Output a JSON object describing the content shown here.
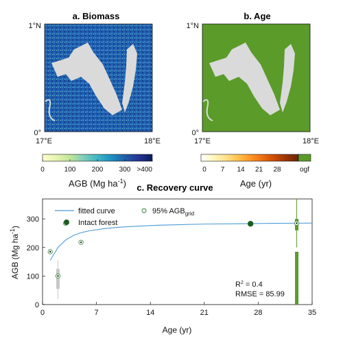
{
  "panels": {
    "a": {
      "title": "a. Biomass",
      "lat_label": "1°N",
      "lat0_label": "0°",
      "lon_left": "17°E",
      "lon_right": "18°E"
    },
    "b": {
      "title": "b. Age",
      "lat_label": "1°N",
      "lat0_label": "0°",
      "lon_left": "17°E",
      "lon_right": "18°E"
    }
  },
  "colorbars": {
    "agb": {
      "ticks": [
        "0",
        "100",
        "200",
        "300",
        ">400"
      ],
      "label_main": "AGB (Mg ha",
      "label_sup": "-1",
      "label_end": ")",
      "colors": [
        "#fffccc",
        "#e6f5b0",
        "#c2e699",
        "#7fcdbb",
        "#41b6c4",
        "#1d91c0",
        "#225ea8",
        "#253494",
        "#081d58"
      ]
    },
    "age": {
      "ticks": [
        "0",
        "7",
        "14",
        "21",
        "28",
        "ogf"
      ],
      "label": "Age (yr)",
      "colors": [
        "#ffffff",
        "#fff7bc",
        "#fee391",
        "#fec44f",
        "#fe9929",
        "#ec7014",
        "#cc4c02",
        "#993404",
        "#662506"
      ],
      "ogf_color": "#5b9b2a"
    }
  },
  "chart_data": {
    "type": "scatter",
    "title": "c. Recovery curve",
    "xlabel": "Age (yr)",
    "ylabel_main": "AGB (Mg ha",
    "ylabel_sup": "-1",
    "ylabel_end": ")",
    "xlim": [
      0,
      35
    ],
    "ylim": [
      0,
      370
    ],
    "xticks": [
      0,
      7,
      14,
      21,
      28,
      35
    ],
    "yticks": [
      0,
      100,
      200,
      300
    ],
    "legend": {
      "fitted": "fitted curve",
      "intact": "Intact forest",
      "grid_main": "95% AGB",
      "grid_sub": "grid"
    },
    "fitted_curve": {
      "x": [
        1,
        2,
        3,
        4,
        5,
        6,
        8,
        10,
        12,
        15,
        18,
        21,
        25,
        28,
        30,
        33,
        35
      ],
      "y": [
        155,
        200,
        226,
        242,
        252,
        258,
        266,
        271,
        274,
        278,
        280,
        282,
        283,
        284,
        284.5,
        285,
        285.5
      ]
    },
    "grid_points": [
      {
        "x": 1,
        "y": 185
      },
      {
        "x": 2,
        "y": 100
      },
      {
        "x": 3,
        "y": 285
      },
      {
        "x": 5,
        "y": 218
      },
      {
        "x": 33,
        "y": 285
      }
    ],
    "intact_points": [
      {
        "x": 27,
        "y": 283
      }
    ],
    "boxplots": [
      {
        "x": 2,
        "color": "#c8c8c8",
        "whisker_low": 20,
        "q1": 55,
        "q3": 125,
        "whisker_high": 155
      },
      {
        "x": 33,
        "color": "#5b9b2a",
        "whisker_low": 0,
        "q1": 0,
        "q3": 185,
        "whisker_high": 185
      },
      {
        "x": 33,
        "color": "#5b9b2a",
        "whisker_low": 200,
        "q1": 260,
        "q3": 300,
        "whisker_high": 370
      }
    ],
    "stats": {
      "r2_main": "R",
      "r2_sup": "2",
      "r2_val": " = 0.4",
      "rmse": "RMSE = 85.99"
    },
    "colors": {
      "curve": "#4a9bd6",
      "intact": "#1b5e20",
      "grid_ring": "#2e7d32",
      "axis": "#111111"
    },
    "grid": false,
    "legend_position": "top-left"
  }
}
